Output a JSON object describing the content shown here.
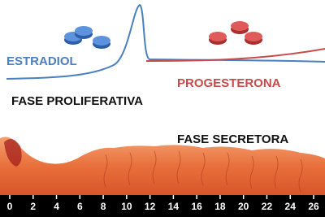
{
  "labels": {
    "estradiol": "ESTRADIOL",
    "progesterone": "PROGESTERONA",
    "proliferative": "FASE PROLIFERATIVA",
    "secretory": "FASE SECRETORA"
  },
  "axis": {
    "ticks": [
      0,
      2,
      4,
      6,
      8,
      10,
      12,
      14,
      16,
      18,
      20,
      22,
      24,
      26
    ]
  }
}
